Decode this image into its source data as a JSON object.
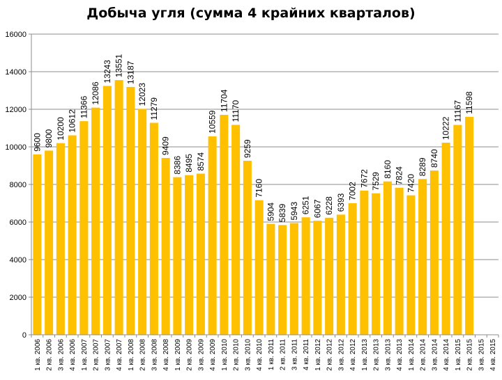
{
  "chart_data": {
    "type": "bar",
    "title": "Добыча угля (сумма 4 крайних кварталов)",
    "xlabel": "",
    "ylabel": "",
    "ylim": [
      0,
      16000
    ],
    "yticks": [
      "0",
      "2000",
      "4000",
      "6000",
      "8000",
      "10000",
      "12000",
      "14000",
      "16000"
    ],
    "grid": true,
    "legend": "none",
    "bar_color": "#FFC000",
    "categories": [
      "1 кв. 2006",
      "2 кв. 2006",
      "3 кв. 2006",
      "4 кв. 2006",
      "1 кв. 2007",
      "2 кв. 2007",
      "3 кв. 2007",
      "4 кв. 2007",
      "1 кв. 2008",
      "2 кв. 2008",
      "3 кв. 2008",
      "4 кв. 2008",
      "1 кв. 2009",
      "2 кв. 2009",
      "3 кв. 2009",
      "4 кв. 2009",
      "1 кв. 2010",
      "2 кв. 2010",
      "3 кв. 2010",
      "4 кв. 2010",
      "1 кв. 2011",
      "2 кв. 2011",
      "3 кв. 2011",
      "4 кв. 2011",
      "1 кв. 2012",
      "2 кв. 2012",
      "3 кв. 2012",
      "4 кв. 2012",
      "1 кв. 2013",
      "2 кв. 2013",
      "3 кв. 2013",
      "4 кв. 2013",
      "1 кв. 2014",
      "2 кв. 2014",
      "3 кв. 2014",
      "4 кв. 2014",
      "1 кв. 2015",
      "2 кв. 2015",
      "3 кв. 2015",
      "4 кв. 2015"
    ],
    "values": [
      9600,
      9800,
      10200,
      10612,
      11366,
      12086,
      13243,
      13551,
      13187,
      12023,
      11279,
      9409,
      8386,
      8495,
      8574,
      10559,
      11704,
      11170,
      9259,
      7160,
      5904,
      5839,
      5943,
      6251,
      6067,
      6228,
      6393,
      7002,
      7672,
      7529,
      8160,
      7824,
      7420,
      8289,
      8740,
      10222,
      11167,
      11598,
      null,
      null
    ],
    "data_labels": [
      "9600",
      "9800",
      "10200",
      "10612",
      "11366",
      "12086",
      "13243",
      "13551",
      "13187",
      "12023",
      "11279",
      "9409",
      "8386",
      "8495",
      "8574",
      "10559",
      "11704",
      "11170",
      "9259",
      "7160",
      "5904",
      "5839",
      "5943",
      "6251",
      "6067",
      "6228",
      "6393",
      "7002",
      "7672",
      "7529",
      "8160",
      "7824",
      "7420",
      "8289",
      "8740",
      "10222",
      "11167",
      "11598",
      "",
      ""
    ]
  }
}
